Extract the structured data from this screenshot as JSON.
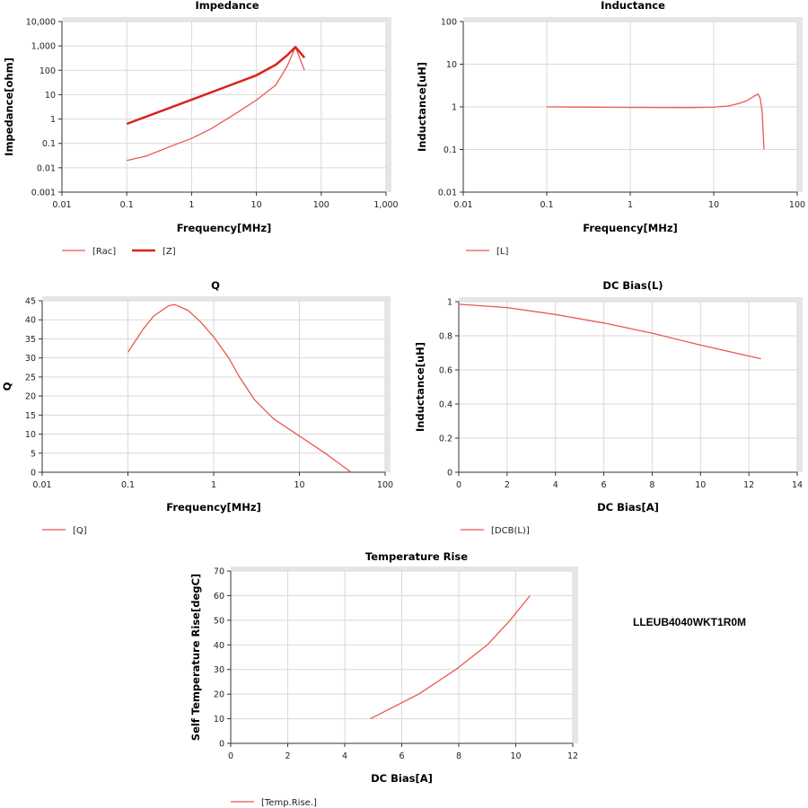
{
  "part_number": "LLEUB4040WKT1R0M",
  "colors": {
    "line": "#e8584f",
    "line_bold": "#d8231c",
    "grid": "#d9d9d9",
    "band": "#e6e6e6"
  },
  "chart_data": [
    {
      "type": "line",
      "title": "Impedance",
      "xlabel": "Frequency[MHz]",
      "ylabel": "Impedance[ohm]",
      "xscale": "log",
      "yscale": "log",
      "xlim": [
        0.01,
        1000
      ],
      "ylim": [
        0.001,
        10000
      ],
      "grid": true,
      "legend": "bottom-left",
      "xticks": [
        "0.01",
        "0.1",
        "1",
        "10",
        "100",
        "1,000"
      ],
      "yticks": [
        "0.001",
        "0.01",
        "0.1",
        "1",
        "10",
        "100",
        "1,000",
        "10,000"
      ],
      "series": [
        {
          "name": "[Rac]",
          "x": [
            0.1,
            0.2,
            0.5,
            1,
            2,
            5,
            10,
            20,
            30,
            40,
            55
          ],
          "y": [
            0.02,
            0.03,
            0.08,
            0.16,
            0.4,
            1.8,
            6,
            25,
            150,
            900,
            100
          ]
        },
        {
          "name": "[Z]",
          "bold": true,
          "x": [
            0.1,
            1,
            10,
            20,
            30,
            40,
            55
          ],
          "y": [
            0.63,
            6.2,
            62,
            170,
            420,
            900,
            330
          ]
        }
      ]
    },
    {
      "type": "line",
      "title": "Inductance",
      "xlabel": "Frequency[MHz]",
      "ylabel": "Inductance[uH]",
      "xscale": "log",
      "yscale": "log",
      "xlim": [
        0.01,
        100
      ],
      "ylim": [
        0.01,
        100
      ],
      "grid": true,
      "legend": "bottom-left",
      "xticks": [
        "0.01",
        "0.1",
        "1",
        "10",
        "100"
      ],
      "yticks": [
        "0.01",
        "0.1",
        "1",
        "10",
        "100"
      ],
      "series": [
        {
          "name": "[L]",
          "x": [
            0.1,
            1,
            5,
            10,
            15,
            20,
            25,
            30,
            34,
            36,
            38,
            40
          ],
          "y": [
            1.0,
            0.97,
            0.96,
            0.98,
            1.05,
            1.2,
            1.4,
            1.75,
            2.0,
            1.6,
            0.8,
            0.1
          ]
        }
      ]
    },
    {
      "type": "line",
      "title": "Q",
      "xlabel": "Frequency[MHz]",
      "ylabel": "Q",
      "xscale": "log",
      "yscale": "linear",
      "xlim": [
        0.01,
        100
      ],
      "ylim": [
        0,
        45
      ],
      "grid": true,
      "legend": "bottom-left",
      "xticks": [
        "0.01",
        "0.1",
        "1",
        "10",
        "100"
      ],
      "yticks": [
        "0",
        "5",
        "10",
        "15",
        "20",
        "25",
        "30",
        "35",
        "40",
        "45"
      ],
      "series": [
        {
          "name": "[Q]",
          "x": [
            0.1,
            0.15,
            0.2,
            0.3,
            0.35,
            0.5,
            0.7,
            1,
            1.5,
            2,
            3,
            5,
            10,
            20,
            40
          ],
          "y": [
            31.5,
            37.5,
            41,
            43.7,
            44,
            42.5,
            39.5,
            35.5,
            30,
            25,
            19,
            14,
            9.5,
            5,
            0
          ]
        }
      ]
    },
    {
      "type": "line",
      "title": "DC Bias(L)",
      "xlabel": "DC Bias[A]",
      "ylabel": "Inductance[uH]",
      "xscale": "linear",
      "yscale": "linear",
      "xlim": [
        0,
        14
      ],
      "ylim": [
        0,
        1
      ],
      "grid": true,
      "legend": "bottom-left",
      "xticks": [
        "0",
        "2",
        "4",
        "6",
        "8",
        "10",
        "12",
        "14"
      ],
      "yticks": [
        "0",
        "0.2",
        "0.4",
        "0.6",
        "0.8",
        "1"
      ],
      "series": [
        {
          "name": "[DCB(L)]",
          "x": [
            0,
            2,
            4,
            6,
            8,
            10,
            12.5
          ],
          "y": [
            0.985,
            0.965,
            0.925,
            0.875,
            0.815,
            0.745,
            0.665
          ]
        }
      ]
    },
    {
      "type": "line",
      "title": "Temperature Rise",
      "xlabel": "DC Bias[A]",
      "ylabel": "Self Temperature Rise[degC]",
      "xscale": "linear",
      "yscale": "linear",
      "xlim": [
        0,
        12
      ],
      "ylim": [
        0,
        70
      ],
      "grid": true,
      "legend": "bottom-left",
      "xticks": [
        "0",
        "2",
        "4",
        "6",
        "8",
        "10",
        "12"
      ],
      "yticks": [
        "0",
        "10",
        "20",
        "30",
        "40",
        "50",
        "60",
        "70"
      ],
      "series": [
        {
          "name": "[Temp.Rise.]",
          "x": [
            4.9,
            6.6,
            7.9,
            9.0,
            9.8,
            10.5
          ],
          "y": [
            10,
            20,
            30,
            40,
            50,
            60
          ]
        }
      ]
    }
  ]
}
